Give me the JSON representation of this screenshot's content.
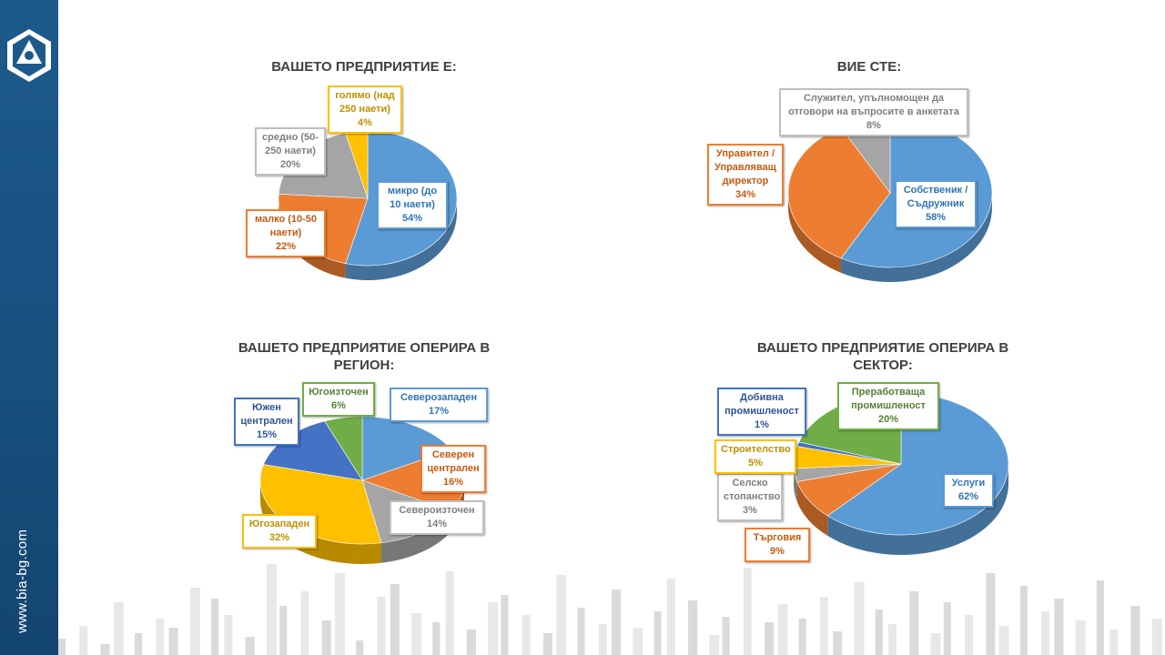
{
  "site_url": "www.bia-bg.com",
  "colors": {
    "sidebar": "#1d5a8c",
    "blue": "#5b9bd5",
    "orange": "#ed7d31",
    "gray": "#a5a5a5",
    "yellow": "#ffc000",
    "green": "#70ad47",
    "dark_blue": "#4472c4"
  },
  "chart_data": [
    {
      "type": "pie",
      "title": "ВАШЕТО ПРЕДПРИЯТИЕ Е:",
      "slices": [
        {
          "label": "микро (до 10 наети)",
          "value": 54,
          "pct": "54%",
          "color": "#5b9bd5"
        },
        {
          "label": "малко (10-50 наети)",
          "value": 22,
          "pct": "22%",
          "color": "#ed7d31"
        },
        {
          "label": "средно (50-250 наети)",
          "value": 20,
          "pct": "20%",
          "color": "#a5a5a5"
        },
        {
          "label": "голямо (над 250 наети)",
          "value": 4,
          "pct": "4%",
          "color": "#ffc000"
        }
      ]
    },
    {
      "type": "pie",
      "title": "ВИЕ СТЕ:",
      "slices": [
        {
          "label": "Собственик / Съдружник",
          "value": 58,
          "pct": "58%",
          "color": "#5b9bd5"
        },
        {
          "label": "Управител / Управляващ директор",
          "value": 34,
          "pct": "34%",
          "color": "#ed7d31"
        },
        {
          "label": "Служител, упълномощен да отговори на въпросите в анкетата",
          "value": 8,
          "pct": "8%",
          "color": "#a5a5a5"
        }
      ]
    },
    {
      "type": "pie",
      "title": "ВАШЕТО ПРЕДПРИЯТИЕ ОПЕРИРА В РЕГИОН:",
      "slices": [
        {
          "label": "Северозападен",
          "value": 17,
          "pct": "17%",
          "color": "#5b9bd5"
        },
        {
          "label": "Северен централен",
          "value": 16,
          "pct": "16%",
          "color": "#ed7d31"
        },
        {
          "label": "Североизточен",
          "value": 14,
          "pct": "14%",
          "color": "#a5a5a5"
        },
        {
          "label": "Югозападен",
          "value": 32,
          "pct": "32%",
          "color": "#ffc000"
        },
        {
          "label": "Южен централен",
          "value": 15,
          "pct": "15%",
          "color": "#4472c4"
        },
        {
          "label": "Югоизточен",
          "value": 6,
          "pct": "6%",
          "color": "#70ad47"
        }
      ]
    },
    {
      "type": "pie",
      "title": "ВАШЕТО ПРЕДПРИЯТИЕ ОПЕРИРА В СЕКТОР:",
      "slices": [
        {
          "label": "Услуги",
          "value": 62,
          "pct": "62%",
          "color": "#5b9bd5"
        },
        {
          "label": "Търговия",
          "value": 9,
          "pct": "9%",
          "color": "#ed7d31"
        },
        {
          "label": "Селско стопанство",
          "value": 3,
          "pct": "3%",
          "color": "#a5a5a5"
        },
        {
          "label": "Строителство",
          "value": 5,
          "pct": "5%",
          "color": "#ffc000"
        },
        {
          "label": "Добивна промишленост",
          "value": 1,
          "pct": "1%",
          "color": "#4472c4"
        },
        {
          "label": "Преработваща промишленост",
          "value": 20,
          "pct": "20%",
          "color": "#70ad47"
        }
      ]
    }
  ],
  "labels": {
    "c1": {
      "micro": [
        "микро (до",
        "10 наети)",
        "54%"
      ],
      "small": [
        "малко (10-50",
        "наети)",
        "22%"
      ],
      "medium": [
        "средно (50-",
        "250 наети)",
        "20%"
      ],
      "large": [
        "голямо (над",
        "250 наети)",
        "4%"
      ]
    },
    "c2": {
      "owner": [
        "Собственик /",
        "Съдружник",
        "58%"
      ],
      "manager": [
        "Управител /",
        "Управляващ",
        "директор",
        "34%"
      ],
      "employee": [
        "Служител, упълномощен да",
        "отговори на въпросите в анкетата",
        "8%"
      ]
    },
    "c3": {
      "title_l1": "ВАШЕТО ПРЕДПРИЯТИЕ ОПЕРИРА В",
      "title_l2": "РЕГИОН:",
      "nw": [
        "Северозападен",
        "17%"
      ],
      "nc": [
        "Северен",
        "централен",
        "16%"
      ],
      "ne": [
        "Североизточен",
        "14%"
      ],
      "sw": [
        "Югозападен",
        "32%"
      ],
      "sc": [
        "Южен",
        "централен",
        "15%"
      ],
      "se": [
        "Югоизточен",
        "6%"
      ]
    },
    "c4": {
      "title_l1": "ВАШЕТО ПРЕДПРИЯТИЕ ОПЕРИРА В",
      "title_l2": "СЕКТОР:",
      "services": [
        "Услуги",
        "62%"
      ],
      "trade": [
        "Търговия",
        "9%"
      ],
      "agri": [
        "Селско",
        "стопанство",
        "3%"
      ],
      "constr": [
        "Строителство",
        "5%"
      ],
      "mining": [
        "Добивна",
        "промишленост",
        "1%"
      ],
      "manuf": [
        "Преработваща",
        "промишленост",
        "20%"
      ]
    }
  }
}
